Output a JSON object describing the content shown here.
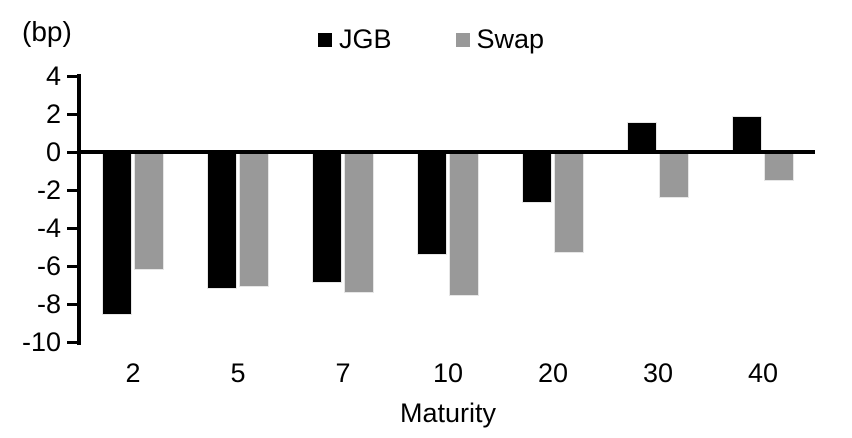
{
  "chart_data": {
    "type": "bar",
    "title": "",
    "ylabel": "(bp)",
    "xlabel": "Maturity",
    "categories": [
      "2",
      "5",
      "7",
      "10",
      "20",
      "30",
      "40"
    ],
    "series": [
      {
        "name": "JGB",
        "color": "#000000",
        "values": [
          -8.6,
          -7.2,
          -6.9,
          -5.4,
          -2.7,
          1.6,
          1.9
        ]
      },
      {
        "name": "Swap",
        "color": "#999999",
        "values": [
          -6.2,
          -7.1,
          -7.4,
          -7.6,
          -5.3,
          -2.4,
          -1.5
        ]
      }
    ],
    "ylim": [
      -10,
      4
    ],
    "ytick_step": 2,
    "yticks": [
      4,
      2,
      0,
      -2,
      -4,
      -6,
      -8,
      -10
    ],
    "grid": false,
    "legend_position": "top-center",
    "axis_color": "#000000",
    "background_color": "#ffffff"
  }
}
